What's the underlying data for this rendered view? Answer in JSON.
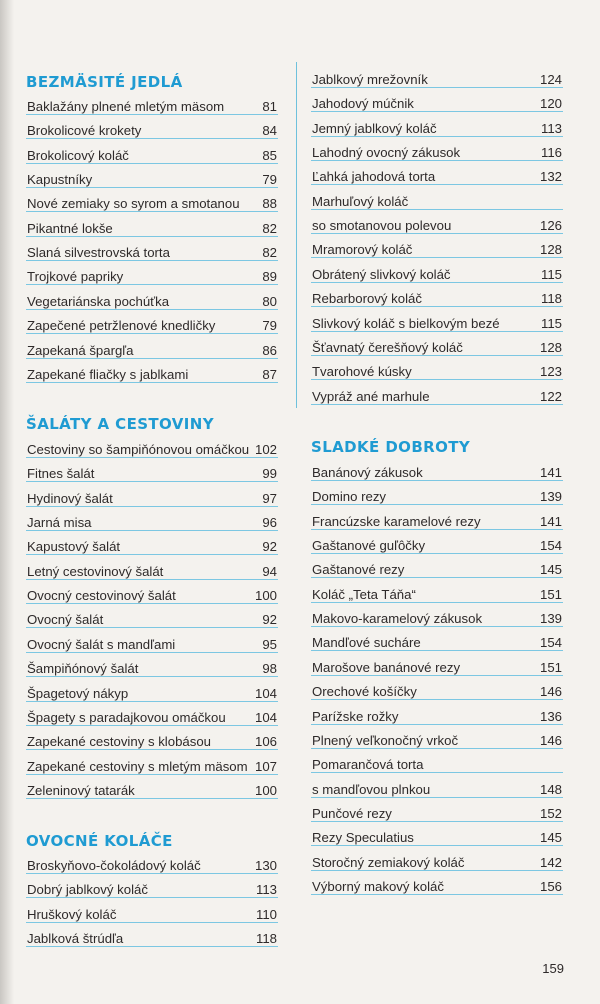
{
  "sections_left": [
    {
      "title": "BEZMÄSITÉ JEDLÁ",
      "items": [
        {
          "name": "Baklažány plnené mletým mäsom",
          "page": "81"
        },
        {
          "name": "Brokolicové krokety",
          "page": "84"
        },
        {
          "name": "Brokolicový koláč",
          "page": "85"
        },
        {
          "name": "Kapustníky",
          "page": "79"
        },
        {
          "name": "Nové zemiaky so syrom a smotanou",
          "page": "88"
        },
        {
          "name": "Pikantné lokše",
          "page": "82"
        },
        {
          "name": "Slaná silvestrovská torta",
          "page": "82"
        },
        {
          "name": "Trojkové papriky",
          "page": "89"
        },
        {
          "name": "Vegetariánska pochúťka",
          "page": "80"
        },
        {
          "name": "Zapečené petržlenové knedličky",
          "page": "79"
        },
        {
          "name": "Zapekaná špargľa",
          "page": "86"
        },
        {
          "name": "Zapekané fliačky s jablkami",
          "page": "87"
        }
      ]
    },
    {
      "title": "ŠALÁTY A CESTOVINY",
      "items": [
        {
          "name": "Cestoviny so šampiňónovou omáčkou",
          "page": "102"
        },
        {
          "name": "Fitnes šalát",
          "page": "99"
        },
        {
          "name": "Hydinový šalát",
          "page": "97"
        },
        {
          "name": "Jarná misa",
          "page": "96"
        },
        {
          "name": "Kapustový šalát",
          "page": "92"
        },
        {
          "name": "Letný cestovinový šalát",
          "page": "94"
        },
        {
          "name": "Ovocný cestovinový šalát",
          "page": "100"
        },
        {
          "name": "Ovocný šalát",
          "page": "92"
        },
        {
          "name": "Ovocný šalát s mandľami",
          "page": "95"
        },
        {
          "name": "Šampiňónový šalát",
          "page": "98"
        },
        {
          "name": "Špagetový nákyp",
          "page": "104"
        },
        {
          "name": "Špagety s paradajkovou omáčkou",
          "page": "104"
        },
        {
          "name": "Zapekané cestoviny s klobásou",
          "page": "106"
        },
        {
          "name": "Zapekané cestoviny s mletým mäsom",
          "page": "107"
        },
        {
          "name": "Zeleninový tatarák",
          "page": "100"
        }
      ]
    },
    {
      "title": "OVOCNÉ KOLÁČE",
      "items": [
        {
          "name": "Broskyňovo-čokoládový koláč",
          "page": "130"
        },
        {
          "name": "Dobrý jablkový koláč",
          "page": "113"
        },
        {
          "name": "Hruškový koláč",
          "page": "110"
        },
        {
          "name": "Jablková štrúdľa",
          "page": "118"
        }
      ]
    }
  ],
  "sections_right": [
    {
      "title": "",
      "items": [
        {
          "name": "Jablkový mrežovník",
          "page": "124"
        },
        {
          "name": "Jahodový múčnik",
          "page": "120"
        },
        {
          "name": "Jemný jablkový koláč",
          "page": "113"
        },
        {
          "name": "Lahodný ovocný zákusok",
          "page": "116"
        },
        {
          "name": "Ľahká jahodová torta",
          "page": "132"
        },
        {
          "name": "Marhuľový koláč",
          "page": ""
        },
        {
          "name": "so smotanovou polevou",
          "page": "126"
        },
        {
          "name": "Mramorový koláč",
          "page": "128"
        },
        {
          "name": "Obrátený slivkový koláč",
          "page": "115"
        },
        {
          "name": "Rebarborový koláč",
          "page": "118"
        },
        {
          "name": "Slivkový koláč s bielkovým bezé",
          "page": "115"
        },
        {
          "name": "Šťavnatý čerešňový koláč",
          "page": "128"
        },
        {
          "name": "Tvarohové kúsky",
          "page": "123"
        },
        {
          "name": "Vypráž ané marhule",
          "page": "122"
        }
      ]
    },
    {
      "title": "SLADKÉ DOBROTY",
      "items": [
        {
          "name": "Banánový zákusok",
          "page": "141"
        },
        {
          "name": "Domino rezy",
          "page": "139"
        },
        {
          "name": "Francúzske karamelové rezy",
          "page": "141"
        },
        {
          "name": "Gaštanové guľôčky",
          "page": "154"
        },
        {
          "name": "Gaštanové rezy",
          "page": "145"
        },
        {
          "name": "Koláč „Teta Táňa“",
          "page": "151"
        },
        {
          "name": "Makovo-karamelový zákusok",
          "page": "139"
        },
        {
          "name": "Mandľové sucháre",
          "page": "154"
        },
        {
          "name": "Marošove banánové rezy",
          "page": "151"
        },
        {
          "name": "Orechové košíčky",
          "page": "146"
        },
        {
          "name": "Parížske rožky",
          "page": "136"
        },
        {
          "name": "Plnený veľkonočný vrkoč",
          "page": "146"
        },
        {
          "name": "Pomarančová torta",
          "page": ""
        },
        {
          "name": "s mandľovou plnkou",
          "page": "148"
        },
        {
          "name": "Punčové rezy",
          "page": "152"
        },
        {
          "name": "Rezy Speculatius",
          "page": "145"
        },
        {
          "name": "Storočný zemiakový koláč",
          "page": "142"
        },
        {
          "name": "Výborný makový koláč",
          "page": "156"
        }
      ]
    }
  ],
  "page_number": "159",
  "colors": {
    "accent": "#1f9bd2",
    "rule": "#7cc7e2",
    "text": "#2e2a2a",
    "paper": "#f4f2ee"
  }
}
